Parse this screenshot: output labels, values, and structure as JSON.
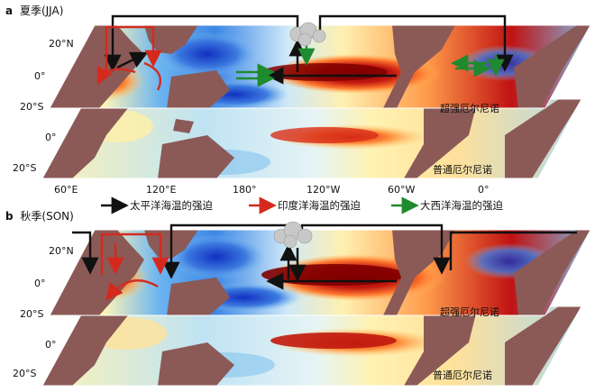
{
  "panels": [
    {
      "letter": "a",
      "title": "夏季(JJA)",
      "strong_label": "超强厄尔尼诺",
      "normal_label": "普通厄尔尼诺"
    },
    {
      "letter": "b",
      "title": "秋季(SON)",
      "strong_label": "超强厄尔尼诺",
      "normal_label": "普通厄尔尼诺"
    }
  ],
  "lat_ticks": [
    "20°N",
    "0°",
    "20°S"
  ],
  "lon_ticks": [
    "60°E",
    "120°E",
    "180°",
    "120°W",
    "60°W",
    "0°"
  ],
  "legend": [
    {
      "label": "太平洋海温的强迫",
      "color": "#111111"
    },
    {
      "label": "印度洋海温的强迫",
      "color": "#d42a1e"
    },
    {
      "label": "大西洋海温的强迫",
      "color": "#1f8a2e"
    }
  ],
  "colors": {
    "land": "#8b5a57",
    "warm": "#b01010",
    "cold": "#2a4fd0"
  }
}
